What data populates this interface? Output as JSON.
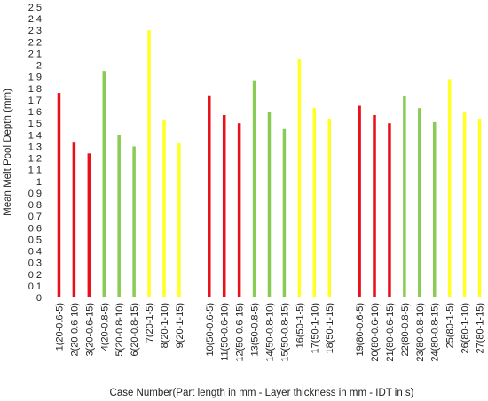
{
  "chart_data": {
    "type": "bar",
    "xlabel": "Case Number(Part length in mm - Layer thickness in mm - IDT in s)",
    "ylabel": "Mean Melt Pool Depth (mm)",
    "ylim": [
      0,
      2.5
    ],
    "ytick_step": 0.1,
    "grid": false,
    "legend": "none",
    "colors": {
      "0.6": "#e8101a",
      "0.8": "#88cc55",
      "1": "#ffff22"
    },
    "categories": [
      "1(20-0.6-5)",
      "2(20-0.6-10)",
      "3(20-0.6-15)",
      "4(20-0.8-5)",
      "5(20-0.8-10)",
      "6(20-0.8-15)",
      "7(20-1-5)",
      "8(20-1-10)",
      "9(20-1-15)",
      "",
      "10(50-0.6-5)",
      "11(50-0.6-10)",
      "12(50-0.6-15)",
      "13(50-0.8-5)",
      "14(50-0.8-10)",
      "15(50-0.8-15)",
      "16(50-1-5)",
      "17(50-1-10)",
      "18(50-1-15)",
      "",
      "19(80-0.6-5)",
      "20(80-0.6-10)",
      "21(80-0.6-15)",
      "22(80-0.8-5)",
      "23(80-0.8-10)",
      "24(80-0.8-15)",
      "25(80-1-5)",
      "26(80-1-10)",
      "27(80-1-15)"
    ],
    "values": [
      1.76,
      1.34,
      1.24,
      1.95,
      1.4,
      1.3,
      2.3,
      1.53,
      1.33,
      null,
      1.74,
      1.57,
      1.5,
      1.87,
      1.6,
      1.45,
      2.05,
      1.63,
      1.54,
      null,
      1.65,
      1.57,
      1.5,
      1.73,
      1.63,
      1.51,
      1.88,
      1.6,
      1.54
    ],
    "layer_thickness": [
      "0.6",
      "0.6",
      "0.6",
      "0.8",
      "0.8",
      "0.8",
      "1",
      "1",
      "1",
      null,
      "0.6",
      "0.6",
      "0.6",
      "0.8",
      "0.8",
      "0.8",
      "1",
      "1",
      "1",
      null,
      "0.6",
      "0.6",
      "0.6",
      "0.8",
      "0.8",
      "0.8",
      "1",
      "1",
      "1"
    ]
  }
}
